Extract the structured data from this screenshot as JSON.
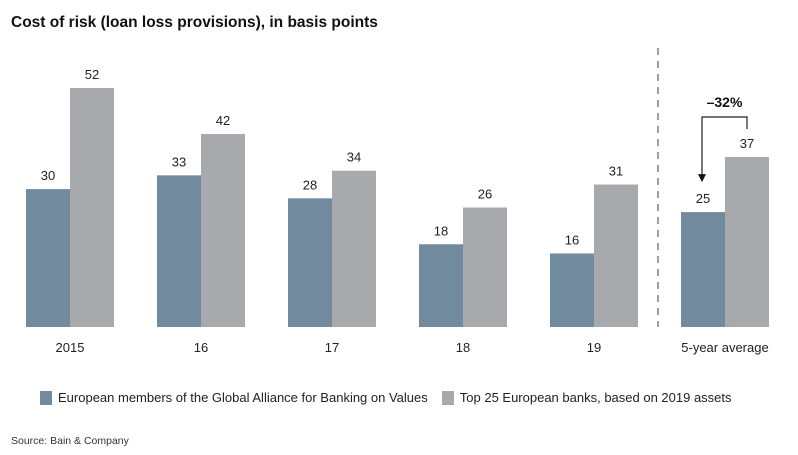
{
  "chart_data": {
    "type": "bar",
    "title": "Cost of risk (loan loss provisions), in basis points",
    "categories": [
      "2015",
      "16",
      "17",
      "18",
      "19",
      "5-year average"
    ],
    "series": [
      {
        "name": "European members of the Global Alliance for Banking on Values",
        "color": "#728a9d",
        "values": [
          30,
          33,
          28,
          18,
          16,
          25
        ]
      },
      {
        "name": "Top 25 European banks, based on 2019 assets",
        "color": "#a8a9ad",
        "values": [
          52,
          42,
          34,
          26,
          31,
          37
        ]
      }
    ],
    "xlabel": "",
    "ylabel": "",
    "ylim": [
      0,
      52
    ],
    "grid": false,
    "legend_position": "bottom",
    "annotation": "–32%",
    "source": "Source: Bain & Company"
  }
}
